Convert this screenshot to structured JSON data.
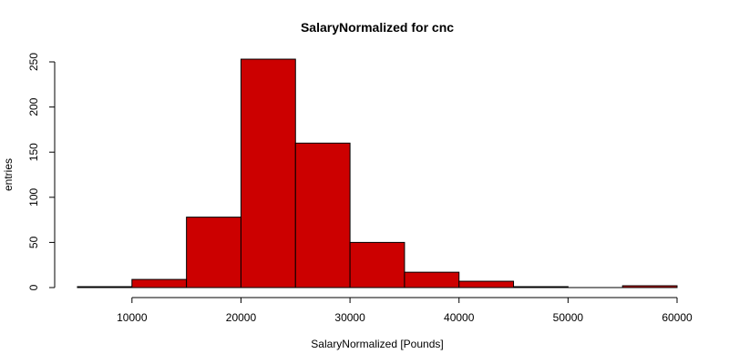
{
  "chart_data": {
    "type": "bar",
    "title": "SalaryNormalized for cnc",
    "xlabel": "SalaryNormalized [Pounds]",
    "ylabel": "entries",
    "bin_edges": [
      5000,
      10000,
      15000,
      20000,
      25000,
      30000,
      35000,
      40000,
      45000,
      50000,
      55000,
      60000
    ],
    "values": [
      1,
      9,
      78,
      253,
      160,
      50,
      17,
      7,
      1,
      0,
      2
    ],
    "xlim": [
      5000,
      60000
    ],
    "ylim": [
      0,
      260
    ],
    "x_ticks": [
      10000,
      20000,
      30000,
      40000,
      50000,
      60000
    ],
    "y_ticks": [
      0,
      50,
      100,
      150,
      200,
      250
    ],
    "bar_color": "#CC0000",
    "grid": false
  }
}
